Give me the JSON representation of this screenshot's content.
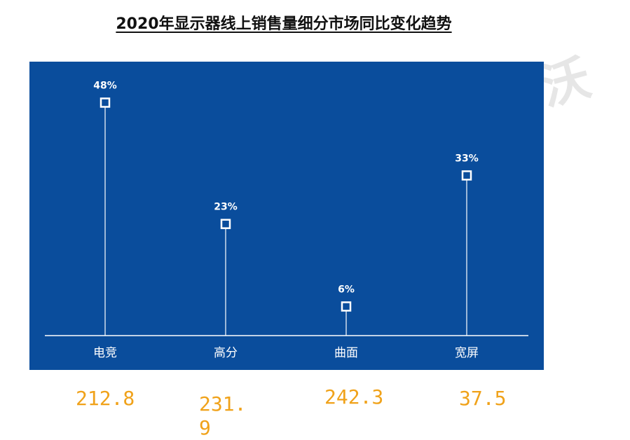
{
  "title": "2020年显示器线上销售量细分市场同比变化趋势",
  "watermark": "沃",
  "colors": {
    "panel_bg": "#0a4d9c",
    "line": "#ffffff",
    "volume_text": "#f0a21a"
  },
  "chart_data": {
    "type": "lollipop",
    "title": "2020年显示器线上销售量细分市场同比变化趋势",
    "categories": [
      "电竞",
      "高分",
      "曲面",
      "宽屏"
    ],
    "values": [
      48,
      23,
      6,
      33
    ],
    "data_labels": [
      "48%",
      "23%",
      "6%",
      "33%"
    ],
    "ylim": [
      0,
      55
    ],
    "grid": false,
    "legend": "none"
  },
  "volumes": [
    "212.8",
    "231.9",
    "242.3",
    "37.5"
  ]
}
